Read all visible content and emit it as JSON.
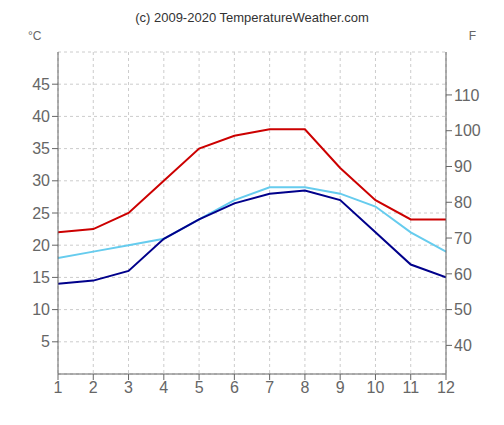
{
  "chart_data": {
    "type": "line",
    "title": "(c) 2009-2020 TemperatureWeather.com",
    "ylabel": "°C",
    "y2label": "F",
    "x": [
      1,
      2,
      3,
      4,
      5,
      6,
      7,
      8,
      9,
      10,
      11,
      12
    ],
    "series": [
      {
        "color": "#cc0000",
        "values": [
          22,
          22.5,
          25,
          30,
          35,
          37,
          38,
          38,
          32,
          27,
          24,
          24
        ]
      },
      {
        "color": "#66ccee",
        "values": [
          18,
          19,
          20,
          21,
          24,
          27,
          29,
          29,
          28,
          26,
          22,
          19
        ]
      },
      {
        "color": "#00008b",
        "values": [
          14,
          14.5,
          16,
          21,
          24,
          26.5,
          28,
          28.5,
          27,
          22,
          17,
          15
        ]
      }
    ],
    "xlim": [
      1,
      12
    ],
    "xticks": [
      1,
      2,
      3,
      4,
      5,
      6,
      7,
      8,
      9,
      10,
      11,
      12
    ],
    "ylim": [
      0,
      50
    ],
    "yticks": [
      5,
      10,
      15,
      20,
      25,
      30,
      35,
      40,
      45
    ],
    "y2lim": [
      32,
      122
    ],
    "y2ticks": [
      40,
      50,
      60,
      70,
      80,
      90,
      100,
      110
    ],
    "grid": true
  }
}
